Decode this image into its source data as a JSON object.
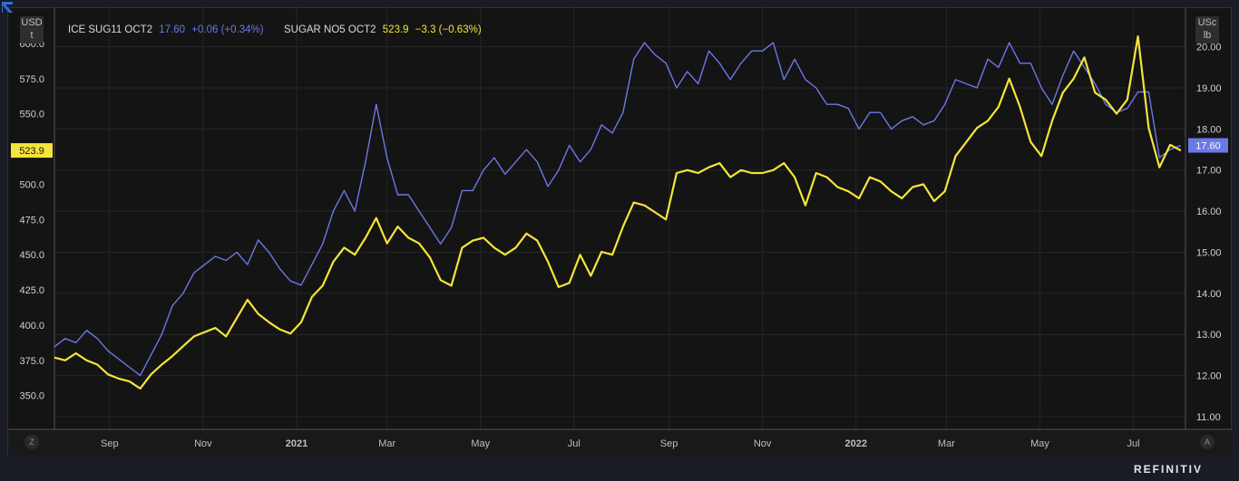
{
  "units": {
    "left_top": "USD",
    "left_bottom": "t",
    "right_top": "USc",
    "right_bottom": "lb"
  },
  "legend": {
    "s1_name": "ICE SUG11 OCT2",
    "s1_last": "17.60",
    "s1_change": "+0.06 (+0.34%)",
    "s2_name": "SUGAR NO5 OCT2",
    "s2_last": "523.9",
    "s2_change": "−3.3 (−0.63%)"
  },
  "last_labels": {
    "left": "523.9",
    "right": "17.60"
  },
  "buttons": {
    "left": "Z",
    "right": "A"
  },
  "brand": "REFINITIV",
  "colors": {
    "s1": "#6b78e6",
    "s2": "#f5e43a",
    "background": "#141414",
    "grid": "#262626"
  },
  "chart_data": {
    "type": "line",
    "grid": true,
    "x_start": "2020-07-27",
    "x_end": "2022-08-04",
    "x_ticks": [
      {
        "label": "Sep",
        "date": "2020-09-01"
      },
      {
        "label": "Nov",
        "date": "2020-11-01"
      },
      {
        "label": "2021",
        "date": "2021-01-01"
      },
      {
        "label": "Mar",
        "date": "2021-03-01"
      },
      {
        "label": "May",
        "date": "2021-05-01"
      },
      {
        "label": "Jul",
        "date": "2021-07-01"
      },
      {
        "label": "Sep",
        "date": "2021-09-01"
      },
      {
        "label": "Nov",
        "date": "2021-11-01"
      },
      {
        "label": "2022",
        "date": "2022-01-01"
      },
      {
        "label": "Mar",
        "date": "2022-03-01"
      },
      {
        "label": "May",
        "date": "2022-05-01"
      },
      {
        "label": "Jul",
        "date": "2022-07-01"
      }
    ],
    "y_left": {
      "unit": "USD/t",
      "range": [
        326,
        625
      ],
      "ticks": [
        "350.0",
        "375.0",
        "400.0",
        "425.0",
        "450.0",
        "475.0",
        "500.0",
        "525.0",
        "550.0",
        "575.0",
        "600.0"
      ]
    },
    "y_right": {
      "unit": "USc/lb",
      "range": [
        10.69,
        20.94
      ],
      "ticks": [
        "11.00",
        "12.00",
        "13.00",
        "14.00",
        "15.00",
        "16.00",
        "17.00",
        "18.00",
        "19.00",
        "20.00"
      ]
    },
    "series": [
      {
        "name": "ICE SUG11 OCT2",
        "axis": "right",
        "points": [
          [
            "2020-07-27",
            12.7
          ],
          [
            "2020-08-03",
            12.9
          ],
          [
            "2020-08-10",
            12.8
          ],
          [
            "2020-08-17",
            13.1
          ],
          [
            "2020-08-24",
            12.9
          ],
          [
            "2020-08-31",
            12.6
          ],
          [
            "2020-09-07",
            12.4
          ],
          [
            "2020-09-14",
            12.2
          ],
          [
            "2020-09-21",
            12.0
          ],
          [
            "2020-09-28",
            12.5
          ],
          [
            "2020-10-05",
            13.0
          ],
          [
            "2020-10-12",
            13.7
          ],
          [
            "2020-10-19",
            14.0
          ],
          [
            "2020-10-26",
            14.5
          ],
          [
            "2020-11-02",
            14.7
          ],
          [
            "2020-11-09",
            14.9
          ],
          [
            "2020-11-16",
            14.8
          ],
          [
            "2020-11-23",
            15.0
          ],
          [
            "2020-11-30",
            14.7
          ],
          [
            "2020-12-07",
            15.3
          ],
          [
            "2020-12-14",
            15.0
          ],
          [
            "2020-12-21",
            14.6
          ],
          [
            "2020-12-28",
            14.3
          ],
          [
            "2021-01-04",
            14.2
          ],
          [
            "2021-01-11",
            14.7
          ],
          [
            "2021-01-18",
            15.2
          ],
          [
            "2021-01-25",
            16.0
          ],
          [
            "2021-02-01",
            16.5
          ],
          [
            "2021-02-08",
            16.0
          ],
          [
            "2021-02-15",
            17.2
          ],
          [
            "2021-02-22",
            18.6
          ],
          [
            "2021-03-01",
            17.3
          ],
          [
            "2021-03-08",
            16.4
          ],
          [
            "2021-03-15",
            16.4
          ],
          [
            "2021-03-22",
            16.0
          ],
          [
            "2021-03-29",
            15.6
          ],
          [
            "2021-04-05",
            15.2
          ],
          [
            "2021-04-12",
            15.6
          ],
          [
            "2021-04-19",
            16.5
          ],
          [
            "2021-04-26",
            16.5
          ],
          [
            "2021-05-03",
            17.0
          ],
          [
            "2021-05-10",
            17.3
          ],
          [
            "2021-05-17",
            16.9
          ],
          [
            "2021-05-24",
            17.2
          ],
          [
            "2021-05-31",
            17.5
          ],
          [
            "2021-06-07",
            17.2
          ],
          [
            "2021-06-14",
            16.6
          ],
          [
            "2021-06-21",
            17.0
          ],
          [
            "2021-06-28",
            17.6
          ],
          [
            "2021-07-05",
            17.2
          ],
          [
            "2021-07-12",
            17.5
          ],
          [
            "2021-07-19",
            18.1
          ],
          [
            "2021-07-26",
            17.9
          ],
          [
            "2021-08-02",
            18.4
          ],
          [
            "2021-08-09",
            19.7
          ],
          [
            "2021-08-16",
            20.1
          ],
          [
            "2021-08-23",
            19.8
          ],
          [
            "2021-08-30",
            19.6
          ],
          [
            "2021-09-06",
            19.0
          ],
          [
            "2021-09-13",
            19.4
          ],
          [
            "2021-09-20",
            19.1
          ],
          [
            "2021-09-27",
            19.9
          ],
          [
            "2021-10-04",
            19.6
          ],
          [
            "2021-10-11",
            19.2
          ],
          [
            "2021-10-18",
            19.6
          ],
          [
            "2021-10-25",
            19.9
          ],
          [
            "2021-11-01",
            19.9
          ],
          [
            "2021-11-08",
            20.1
          ],
          [
            "2021-11-15",
            19.2
          ],
          [
            "2021-11-22",
            19.7
          ],
          [
            "2021-11-29",
            19.2
          ],
          [
            "2021-12-06",
            19.0
          ],
          [
            "2021-12-13",
            18.6
          ],
          [
            "2021-12-20",
            18.6
          ],
          [
            "2021-12-27",
            18.5
          ],
          [
            "2022-01-03",
            18.0
          ],
          [
            "2022-01-10",
            18.4
          ],
          [
            "2022-01-17",
            18.4
          ],
          [
            "2022-01-24",
            18.0
          ],
          [
            "2022-01-31",
            18.2
          ],
          [
            "2022-02-07",
            18.3
          ],
          [
            "2022-02-14",
            18.1
          ],
          [
            "2022-02-21",
            18.2
          ],
          [
            "2022-02-28",
            18.6
          ],
          [
            "2022-03-07",
            19.2
          ],
          [
            "2022-03-14",
            19.1
          ],
          [
            "2022-03-21",
            19.0
          ],
          [
            "2022-03-28",
            19.7
          ],
          [
            "2022-04-04",
            19.5
          ],
          [
            "2022-04-11",
            20.1
          ],
          [
            "2022-04-18",
            19.6
          ],
          [
            "2022-04-25",
            19.6
          ],
          [
            "2022-05-02",
            19.0
          ],
          [
            "2022-05-09",
            18.6
          ],
          [
            "2022-05-16",
            19.3
          ],
          [
            "2022-05-23",
            19.9
          ],
          [
            "2022-05-30",
            19.5
          ],
          [
            "2022-06-06",
            19.1
          ],
          [
            "2022-06-13",
            18.6
          ],
          [
            "2022-06-20",
            18.4
          ],
          [
            "2022-06-27",
            18.5
          ],
          [
            "2022-07-04",
            18.9
          ],
          [
            "2022-07-11",
            18.9
          ],
          [
            "2022-07-18",
            17.3
          ],
          [
            "2022-07-25",
            17.5
          ],
          [
            "2022-08-01",
            17.6
          ]
        ]
      },
      {
        "name": "SUGAR NO5 OCT2",
        "axis": "left",
        "points": [
          [
            "2020-07-27",
            377
          ],
          [
            "2020-08-03",
            375
          ],
          [
            "2020-08-10",
            380
          ],
          [
            "2020-08-17",
            375
          ],
          [
            "2020-08-24",
            372
          ],
          [
            "2020-08-31",
            365
          ],
          [
            "2020-09-07",
            362
          ],
          [
            "2020-09-14",
            360
          ],
          [
            "2020-09-21",
            355
          ],
          [
            "2020-09-28",
            365
          ],
          [
            "2020-10-05",
            372
          ],
          [
            "2020-10-12",
            378
          ],
          [
            "2020-10-19",
            385
          ],
          [
            "2020-10-26",
            392
          ],
          [
            "2020-11-02",
            395
          ],
          [
            "2020-11-09",
            398
          ],
          [
            "2020-11-16",
            392
          ],
          [
            "2020-11-23",
            405
          ],
          [
            "2020-11-30",
            418
          ],
          [
            "2020-12-07",
            408
          ],
          [
            "2020-12-14",
            402
          ],
          [
            "2020-12-21",
            397
          ],
          [
            "2020-12-28",
            394
          ],
          [
            "2021-01-04",
            402
          ],
          [
            "2021-01-11",
            420
          ],
          [
            "2021-01-18",
            428
          ],
          [
            "2021-01-25",
            445
          ],
          [
            "2021-02-01",
            455
          ],
          [
            "2021-02-08",
            450
          ],
          [
            "2021-02-15",
            462
          ],
          [
            "2021-02-22",
            476
          ],
          [
            "2021-03-01",
            458
          ],
          [
            "2021-03-08",
            470
          ],
          [
            "2021-03-15",
            462
          ],
          [
            "2021-03-22",
            458
          ],
          [
            "2021-03-29",
            448
          ],
          [
            "2021-04-05",
            432
          ],
          [
            "2021-04-12",
            428
          ],
          [
            "2021-04-19",
            455
          ],
          [
            "2021-04-26",
            460
          ],
          [
            "2021-05-03",
            462
          ],
          [
            "2021-05-10",
            455
          ],
          [
            "2021-05-17",
            450
          ],
          [
            "2021-05-24",
            455
          ],
          [
            "2021-05-31",
            465
          ],
          [
            "2021-06-07",
            460
          ],
          [
            "2021-06-14",
            445
          ],
          [
            "2021-06-21",
            427
          ],
          [
            "2021-06-28",
            430
          ],
          [
            "2021-07-05",
            450
          ],
          [
            "2021-07-12",
            435
          ],
          [
            "2021-07-19",
            452
          ],
          [
            "2021-07-26",
            450
          ],
          [
            "2021-08-02",
            470
          ],
          [
            "2021-08-09",
            487
          ],
          [
            "2021-08-16",
            485
          ],
          [
            "2021-08-23",
            480
          ],
          [
            "2021-08-30",
            475
          ],
          [
            "2021-09-06",
            508
          ],
          [
            "2021-09-13",
            510
          ],
          [
            "2021-09-20",
            508
          ],
          [
            "2021-09-27",
            512
          ],
          [
            "2021-10-04",
            515
          ],
          [
            "2021-10-11",
            505
          ],
          [
            "2021-10-18",
            510
          ],
          [
            "2021-10-25",
            508
          ],
          [
            "2021-11-01",
            508
          ],
          [
            "2021-11-08",
            510
          ],
          [
            "2021-11-15",
            515
          ],
          [
            "2021-11-22",
            505
          ],
          [
            "2021-11-29",
            485
          ],
          [
            "2021-12-06",
            508
          ],
          [
            "2021-12-13",
            505
          ],
          [
            "2021-12-20",
            498
          ],
          [
            "2021-12-27",
            495
          ],
          [
            "2022-01-03",
            490
          ],
          [
            "2022-01-10",
            505
          ],
          [
            "2022-01-17",
            502
          ],
          [
            "2022-01-24",
            495
          ],
          [
            "2022-01-31",
            490
          ],
          [
            "2022-02-07",
            498
          ],
          [
            "2022-02-14",
            500
          ],
          [
            "2022-02-21",
            488
          ],
          [
            "2022-02-28",
            495
          ],
          [
            "2022-03-07",
            520
          ],
          [
            "2022-03-14",
            530
          ],
          [
            "2022-03-21",
            540
          ],
          [
            "2022-03-28",
            545
          ],
          [
            "2022-04-04",
            555
          ],
          [
            "2022-04-11",
            575
          ],
          [
            "2022-04-18",
            555
          ],
          [
            "2022-04-25",
            530
          ],
          [
            "2022-05-02",
            520
          ],
          [
            "2022-05-09",
            545
          ],
          [
            "2022-05-16",
            565
          ],
          [
            "2022-05-23",
            575
          ],
          [
            "2022-05-30",
            590
          ],
          [
            "2022-06-06",
            565
          ],
          [
            "2022-06-13",
            560
          ],
          [
            "2022-06-20",
            550
          ],
          [
            "2022-06-27",
            560
          ],
          [
            "2022-07-04",
            605
          ],
          [
            "2022-07-11",
            540
          ],
          [
            "2022-07-18",
            512
          ],
          [
            "2022-07-25",
            528
          ],
          [
            "2022-08-01",
            524
          ]
        ]
      }
    ]
  }
}
